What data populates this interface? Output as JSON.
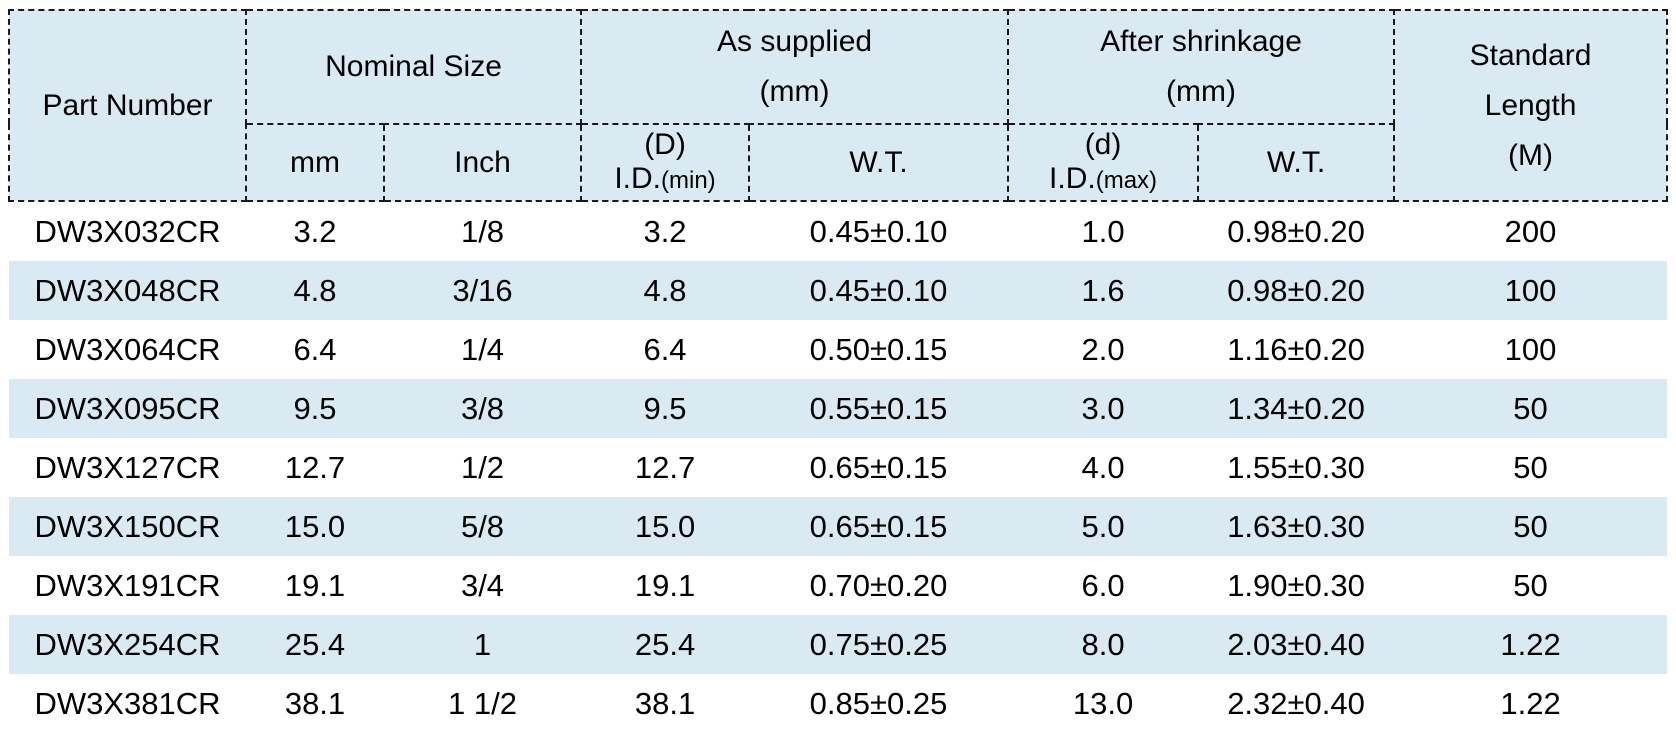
{
  "colors": {
    "header_background": "#d9eaf2",
    "row_stripe": "#d9eaf2",
    "border": "#1a1a1a",
    "text": "#000000"
  },
  "table": {
    "header": {
      "part_number": "Part Number",
      "nominal_size": "Nominal Size",
      "as_supplied": {
        "line1": "As supplied",
        "line2": "(mm)"
      },
      "after_shrinkage": {
        "line1": "After shrinkage",
        "line2": "(mm)"
      },
      "standard_length": {
        "line1": "Standard",
        "line2": "Length",
        "line3": "(M)"
      },
      "sub": {
        "mm": "mm",
        "inch": "Inch",
        "id_min_top": "(D)",
        "id_min_label": "I.D.",
        "id_min_qual": "(min)",
        "wt_as_supplied": "W.T.",
        "id_max_top": "(d)",
        "id_max_label": "I.D.",
        "id_max_qual": "(max)",
        "wt_after_shrinkage": "W.T."
      }
    },
    "rows": [
      [
        "DW3X032CR",
        "3.2",
        "1/8",
        "3.2",
        "0.45±0.10",
        "1.0",
        "0.98±0.20",
        "200"
      ],
      [
        "DW3X048CR",
        "4.8",
        "3/16",
        "4.8",
        "0.45±0.10",
        "1.6",
        "0.98±0.20",
        "100"
      ],
      [
        "DW3X064CR",
        "6.4",
        "1/4",
        "6.4",
        "0.50±0.15",
        "2.0",
        "1.16±0.20",
        "100"
      ],
      [
        "DW3X095CR",
        "9.5",
        "3/8",
        "9.5",
        "0.55±0.15",
        "3.0",
        "1.34±0.20",
        "50"
      ],
      [
        "DW3X127CR",
        "12.7",
        "1/2",
        "12.7",
        "0.65±0.15",
        "4.0",
        "1.55±0.30",
        "50"
      ],
      [
        "DW3X150CR",
        "15.0",
        "5/8",
        "15.0",
        "0.65±0.15",
        "5.0",
        "1.63±0.30",
        "50"
      ],
      [
        "DW3X191CR",
        "19.1",
        "3/4",
        "19.1",
        "0.70±0.20",
        "6.0",
        "1.90±0.30",
        "50"
      ],
      [
        "DW3X254CR",
        "25.4",
        "1",
        "25.4",
        "0.75±0.25",
        "8.0",
        "2.03±0.40",
        "1.22"
      ],
      [
        "DW3X381CR",
        "38.1",
        "1 1/2",
        "38.1",
        "0.85±0.25",
        "13.0",
        "2.32±0.40",
        "1.22"
      ]
    ]
  }
}
